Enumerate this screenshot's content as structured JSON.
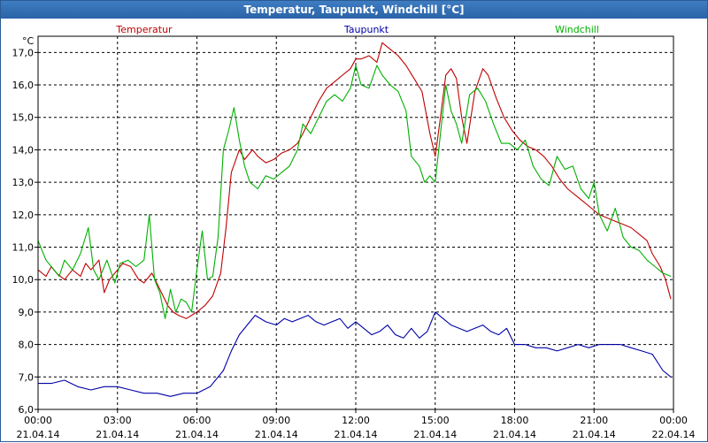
{
  "window": {
    "title": "Temperatur, Taupunkt, Windchill [°C]"
  },
  "chart_data": {
    "type": "line",
    "title": "Temperatur, Taupunkt, Windchill [°C]",
    "ylabel": "°C",
    "ylim": [
      6.0,
      17.5
    ],
    "yticks": [
      "17,0",
      "16,0",
      "15,0",
      "14,0",
      "13,0",
      "12,0",
      "11,0",
      "10,0",
      "9,0",
      "8,0",
      "7,0",
      "6,0"
    ],
    "ytick_values": [
      17,
      16,
      15,
      14,
      13,
      12,
      11,
      10,
      9,
      8,
      7,
      6
    ],
    "xlim": [
      0,
      24
    ],
    "xticks": [
      {
        "time": "00:00",
        "date": "21.04.14"
      },
      {
        "time": "03:00",
        "date": "21.04.14"
      },
      {
        "time": "06:00",
        "date": "21.04.14"
      },
      {
        "time": "09:00",
        "date": "21.04.14"
      },
      {
        "time": "12:00",
        "date": "21.04.14"
      },
      {
        "time": "15:00",
        "date": "21.04.14"
      },
      {
        "time": "18:00",
        "date": "21.04.14"
      },
      {
        "time": "21:00",
        "date": "21.04.14"
      },
      {
        "time": "00:00",
        "date": "22.04.14"
      }
    ],
    "xtick_values": [
      0,
      3,
      6,
      9,
      12,
      15,
      18,
      21,
      24
    ],
    "grid": true,
    "series": [
      {
        "name": "Temperatur",
        "color": "#c00000",
        "x": [
          0,
          0.3,
          0.5,
          0.7,
          1.0,
          1.3,
          1.6,
          1.8,
          2.0,
          2.3,
          2.5,
          2.7,
          3.0,
          3.2,
          3.5,
          3.8,
          4.0,
          4.3,
          4.6,
          4.9,
          5.1,
          5.3,
          5.6,
          5.8,
          6.0,
          6.3,
          6.6,
          6.9,
          7.1,
          7.3,
          7.6,
          7.8,
          8.1,
          8.3,
          8.6,
          8.9,
          9.2,
          9.5,
          9.8,
          10.0,
          10.3,
          10.6,
          10.9,
          11.2,
          11.5,
          11.8,
          12.0,
          12.2,
          12.5,
          12.8,
          13.0,
          13.3,
          13.6,
          13.9,
          14.2,
          14.5,
          14.8,
          15.0,
          15.2,
          15.4,
          15.6,
          15.8,
          16.0,
          16.2,
          16.5,
          16.8,
          17.0,
          17.3,
          17.6,
          17.9,
          18.2,
          18.5,
          18.8,
          19.1,
          19.4,
          19.7,
          20.0,
          20.3,
          20.6,
          20.9,
          21.2,
          21.5,
          21.8,
          22.1,
          22.4,
          22.7,
          23.0,
          23.2,
          23.5,
          23.7,
          23.9
        ],
        "values": [
          10.3,
          10.1,
          10.4,
          10.2,
          10.0,
          10.3,
          10.1,
          10.5,
          10.3,
          10.6,
          9.6,
          10.0,
          10.3,
          10.5,
          10.4,
          10.0,
          9.9,
          10.2,
          9.7,
          9.2,
          9.0,
          8.9,
          8.8,
          8.9,
          9.0,
          9.2,
          9.5,
          10.2,
          11.6,
          13.3,
          14.0,
          13.7,
          14.0,
          13.8,
          13.6,
          13.7,
          13.9,
          14.0,
          14.2,
          14.5,
          15.0,
          15.5,
          15.9,
          16.1,
          16.3,
          16.5,
          16.8,
          16.8,
          16.9,
          16.7,
          17.3,
          17.1,
          16.9,
          16.6,
          16.2,
          15.8,
          14.5,
          13.8,
          15.0,
          16.3,
          16.5,
          16.2,
          15.0,
          14.2,
          15.8,
          16.5,
          16.3,
          15.6,
          15.0,
          14.6,
          14.3,
          14.1,
          14.0,
          13.8,
          13.5,
          13.1,
          12.8,
          12.6,
          12.4,
          12.2,
          12.0,
          11.9,
          11.8,
          11.7,
          11.6,
          11.4,
          11.2,
          10.8,
          10.4,
          10.0,
          9.4
        ]
      },
      {
        "name": "Taupunkt",
        "color": "#0000a8",
        "x": [
          0,
          0.5,
          1.0,
          1.5,
          2.0,
          2.5,
          3.0,
          3.5,
          4.0,
          4.5,
          5.0,
          5.5,
          6.0,
          6.5,
          7.0,
          7.3,
          7.6,
          7.9,
          8.2,
          8.6,
          9.0,
          9.3,
          9.6,
          9.9,
          10.2,
          10.5,
          10.8,
          11.1,
          11.4,
          11.7,
          12.0,
          12.3,
          12.6,
          12.9,
          13.2,
          13.5,
          13.8,
          14.1,
          14.4,
          14.7,
          15.0,
          15.3,
          15.6,
          15.9,
          16.2,
          16.5,
          16.8,
          17.1,
          17.4,
          17.7,
          18.0,
          18.4,
          18.8,
          19.2,
          19.6,
          20.0,
          20.4,
          20.8,
          21.2,
          21.6,
          22.0,
          22.4,
          22.8,
          23.2,
          23.6,
          23.9
        ],
        "values": [
          6.8,
          6.8,
          6.9,
          6.7,
          6.6,
          6.7,
          6.7,
          6.6,
          6.5,
          6.5,
          6.4,
          6.5,
          6.5,
          6.7,
          7.2,
          7.8,
          8.3,
          8.6,
          8.9,
          8.7,
          8.6,
          8.8,
          8.7,
          8.8,
          8.9,
          8.7,
          8.6,
          8.7,
          8.8,
          8.5,
          8.7,
          8.5,
          8.3,
          8.4,
          8.6,
          8.3,
          8.2,
          8.5,
          8.2,
          8.4,
          9.0,
          8.8,
          8.6,
          8.5,
          8.4,
          8.5,
          8.6,
          8.4,
          8.3,
          8.5,
          8.0,
          8.0,
          7.9,
          7.9,
          7.8,
          7.9,
          8.0,
          7.9,
          8.0,
          8.0,
          8.0,
          7.9,
          7.8,
          7.7,
          7.2,
          7.0
        ]
      },
      {
        "name": "Windchill",
        "color": "#00b000",
        "x": [
          0,
          0.3,
          0.5,
          0.8,
          1.0,
          1.3,
          1.6,
          1.9,
          2.1,
          2.3,
          2.6,
          2.9,
          3.1,
          3.4,
          3.7,
          4.0,
          4.2,
          4.4,
          4.6,
          4.8,
          5.0,
          5.2,
          5.4,
          5.6,
          5.8,
          6.0,
          6.2,
          6.4,
          6.6,
          6.8,
          7.0,
          7.2,
          7.4,
          7.6,
          7.8,
          8.0,
          8.3,
          8.6,
          8.9,
          9.2,
          9.5,
          9.8,
          10.0,
          10.3,
          10.6,
          10.9,
          11.2,
          11.5,
          11.8,
          12.0,
          12.2,
          12.5,
          12.8,
          13.0,
          13.3,
          13.6,
          13.9,
          14.1,
          14.4,
          14.6,
          14.8,
          15.0,
          15.2,
          15.4,
          15.6,
          15.8,
          16.0,
          16.3,
          16.6,
          16.9,
          17.2,
          17.5,
          17.8,
          18.1,
          18.4,
          18.7,
          19.0,
          19.3,
          19.6,
          19.9,
          20.2,
          20.5,
          20.8,
          21.0,
          21.2,
          21.5,
          21.8,
          22.1,
          22.4,
          22.7,
          23.0,
          23.3,
          23.6,
          23.9
        ],
        "values": [
          11.2,
          10.6,
          10.4,
          10.1,
          10.6,
          10.3,
          10.8,
          11.6,
          10.3,
          10.0,
          10.6,
          9.9,
          10.5,
          10.6,
          10.4,
          10.6,
          12.0,
          10.0,
          9.6,
          8.8,
          9.7,
          9.0,
          9.4,
          9.3,
          9.0,
          10.3,
          11.5,
          10.0,
          10.1,
          11.3,
          14.0,
          14.6,
          15.3,
          14.3,
          13.5,
          13.0,
          12.8,
          13.2,
          13.1,
          13.3,
          13.5,
          14.0,
          14.8,
          14.5,
          15.0,
          15.5,
          15.7,
          15.5,
          15.9,
          16.6,
          16.0,
          15.9,
          16.6,
          16.3,
          16.0,
          15.8,
          15.2,
          13.8,
          13.5,
          13.0,
          13.2,
          13.0,
          14.5,
          16.0,
          15.2,
          14.8,
          14.2,
          15.7,
          15.9,
          15.5,
          14.8,
          14.2,
          14.2,
          14.0,
          14.3,
          13.5,
          13.1,
          12.9,
          13.8,
          13.4,
          13.5,
          12.8,
          12.5,
          13.0,
          12.0,
          11.5,
          12.2,
          11.3,
          11.0,
          10.9,
          10.6,
          10.4,
          10.2,
          10.1
        ]
      }
    ]
  }
}
